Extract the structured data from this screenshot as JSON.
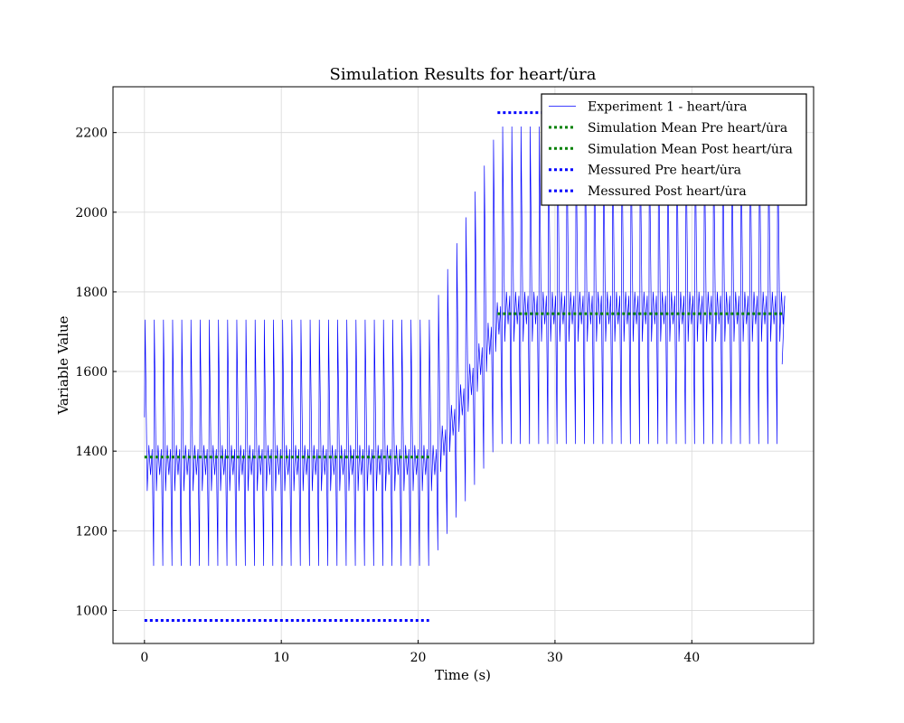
{
  "chart_data": {
    "type": "line",
    "title": "Simulation Results for heart/u̇ra",
    "xlabel": "Time (s)",
    "ylabel": "Variable Value",
    "xlim": [
      -2.3,
      48.9
    ],
    "ylim": [
      917,
      2315
    ],
    "xticks": [
      0,
      10,
      20,
      30,
      40
    ],
    "yticks": [
      1000,
      1200,
      1400,
      1600,
      1800,
      2000,
      2200
    ],
    "grid": true,
    "legend_position": "top-right",
    "signal": {
      "period": 0.67,
      "t_end": 46.6,
      "pre_phase_end": 20.8,
      "post_phase_start": 25.8,
      "pre_shape": {
        "start": 1485,
        "peak": 1730,
        "notch": 1300,
        "secondary": 1415,
        "trough": 1112
      },
      "post_shape": {
        "peak": 2215,
        "notch": 1675,
        "secondary": 1800,
        "trough": 1418,
        "end": 1618
      }
    },
    "series": [
      {
        "name": "Experiment 1 - heart/u̇ra",
        "style": "solid",
        "color": "#0000ff",
        "x_range": [
          0,
          46.6
        ]
      },
      {
        "name": "Simulation Mean Pre heart/u̇ra",
        "style": "dotted",
        "color": "#008000",
        "x": [
          0,
          20.8
        ],
        "y": [
          1385,
          1385
        ]
      },
      {
        "name": "Simulation Mean Post heart/u̇ra",
        "style": "dotted",
        "color": "#008000",
        "x": [
          25.8,
          46.6
        ],
        "y": [
          1745,
          1745
        ]
      },
      {
        "name": "Messured Pre heart/u̇ra",
        "style": "dotted",
        "color": "#0000ff",
        "x": [
          0,
          20.8
        ],
        "y": [
          975,
          975
        ]
      },
      {
        "name": "Messured Post heart/u̇ra",
        "style": "dotted",
        "color": "#0000ff",
        "x": [
          25.8,
          46.6
        ],
        "y": [
          2250,
          2250
        ]
      }
    ]
  }
}
